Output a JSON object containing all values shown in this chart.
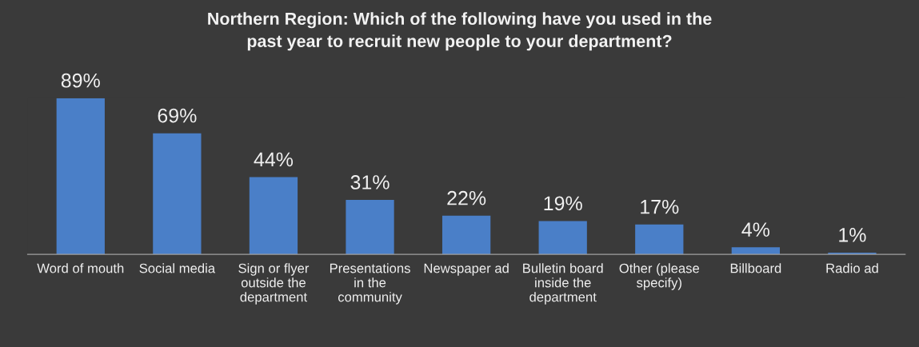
{
  "chart_data": {
    "type": "bar",
    "title": "Northern Region: Which of the following have you used in the\npast year to recruit new people to your department?",
    "categories": [
      "Word of mouth",
      "Social media",
      "Sign or flyer\noutside the\ndepartment",
      "Presentations\nin the\ncommunity",
      "Newspaper ad",
      "Bulletin board\ninside the\ndepartment",
      "Other (please\nspecify)",
      "Billboard",
      "Radio ad"
    ],
    "values": [
      89,
      69,
      44,
      31,
      22,
      19,
      17,
      4,
      1
    ],
    "value_labels": [
      "89%",
      "69%",
      "44%",
      "31%",
      "22%",
      "19%",
      "17%",
      "4%",
      "1%"
    ],
    "color": "#4a7fc8",
    "grid": false,
    "legend": false
  }
}
